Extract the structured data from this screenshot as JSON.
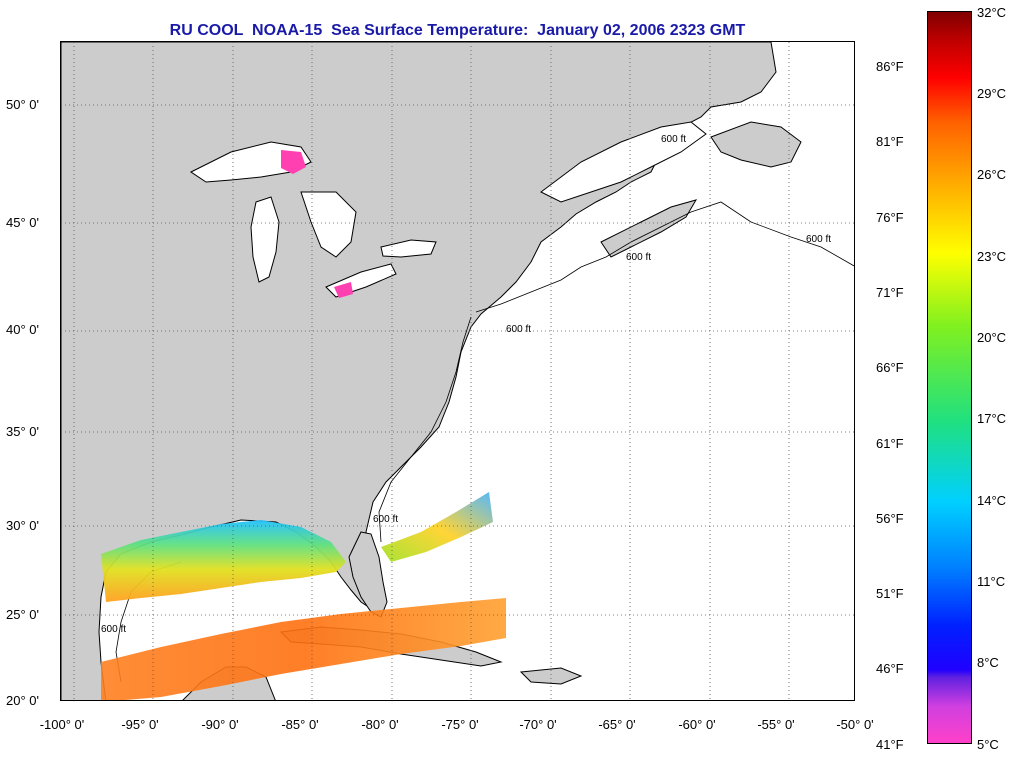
{
  "title": "RU COOL  NOAA-15  Sea Surface Temperature:  January 02, 2006 2323 GMT",
  "map": {
    "contour_label": "600 ft",
    "land_color": "#cccccc",
    "water_color": "#ffffff",
    "grid": "dotted",
    "lat_labels": [
      "50° 0'",
      "45° 0'",
      "40° 0'",
      "35° 0'",
      "30° 0'",
      "25° 0'",
      "20° 0'"
    ],
    "lon_labels": [
      "-100° 0'",
      "-95° 0'",
      "-90° 0'",
      "-85° 0'",
      "-80° 0'",
      "-75° 0'",
      "-70° 0'",
      "-65° 0'",
      "-60° 0'",
      "-55° 0'",
      "-50° 0'"
    ]
  },
  "colorbar": {
    "f_labels": [
      "86°F",
      "81°F",
      "76°F",
      "71°F",
      "66°F",
      "61°F",
      "56°F",
      "51°F",
      "46°F",
      "41°F"
    ],
    "c_labels": [
      "32°C",
      "29°C",
      "26°C",
      "23°C",
      "20°C",
      "17°C",
      "14°C",
      "11°C",
      "8°C",
      "5°C"
    ],
    "gradient_stops": [
      "#ff40c8",
      "#d040e0",
      "#6020e0",
      "#2000ff",
      "#0020ff",
      "#0080ff",
      "#00d0ff",
      "#20e080",
      "#80f020",
      "#ffff00",
      "#ffb000",
      "#ff6000",
      "#ff0000",
      "#c00000",
      "#800000"
    ]
  }
}
